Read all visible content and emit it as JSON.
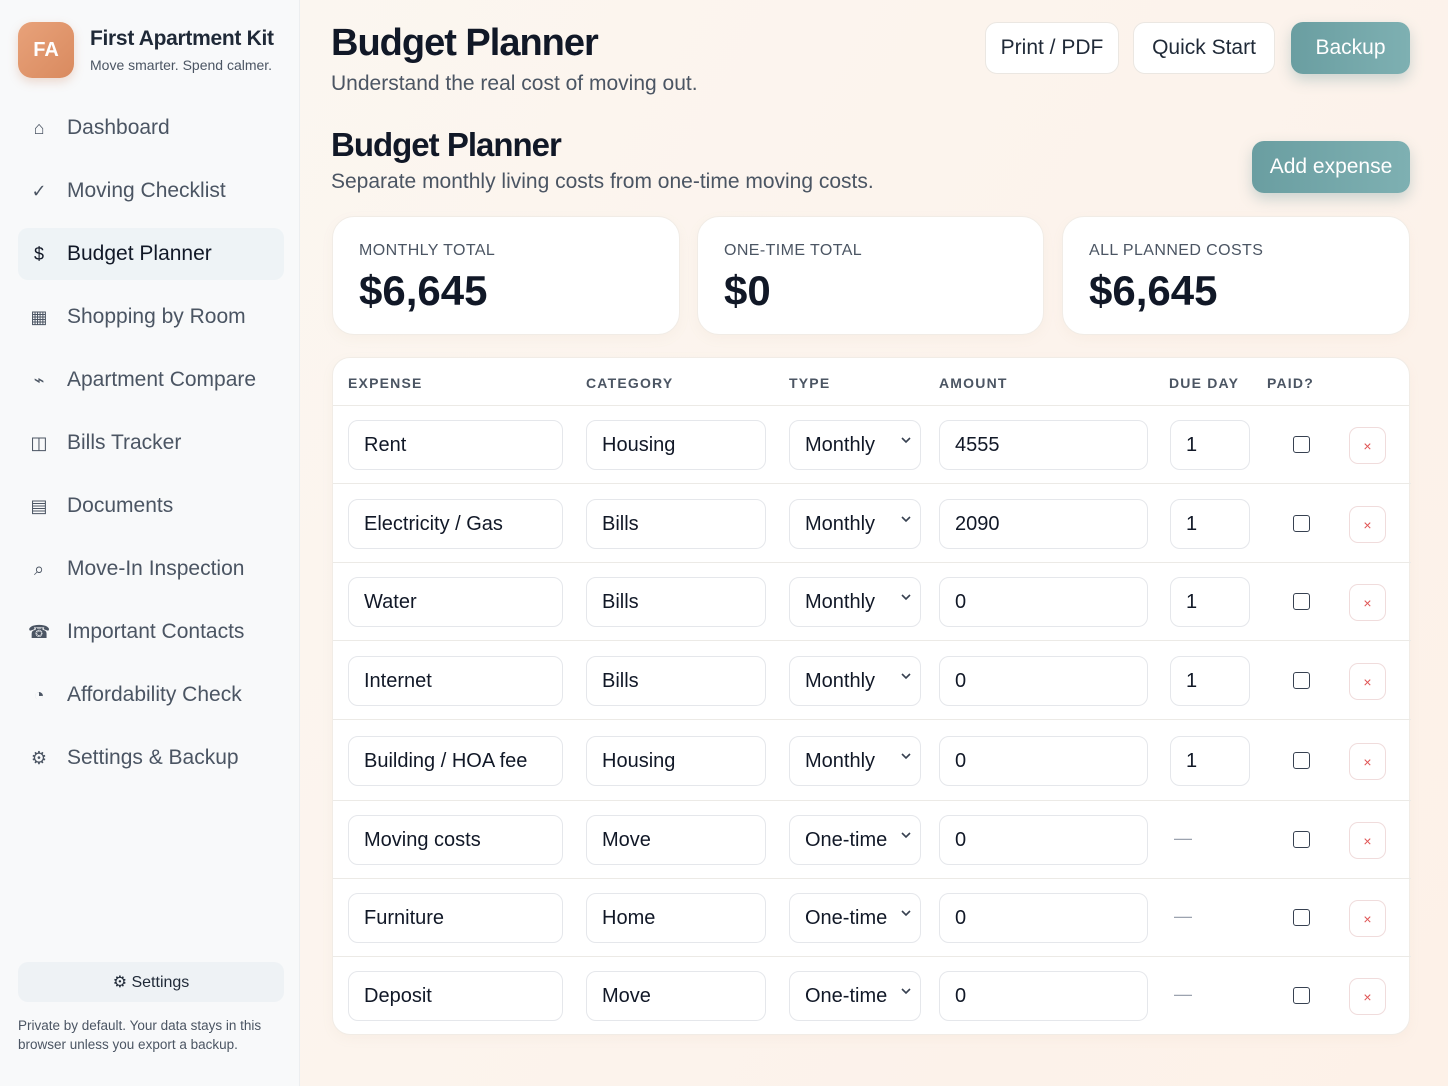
{
  "brand": {
    "initials": "FA",
    "name": "First Apartment Kit",
    "tagline": "Move smarter. Spend calmer."
  },
  "nav": [
    {
      "icon": "⌂",
      "label": "Dashboard",
      "name": "home-icon"
    },
    {
      "icon": "✓",
      "label": "Moving Checklist",
      "name": "check-icon"
    },
    {
      "icon": "$",
      "label": "Budget Planner",
      "name": "dollar-icon",
      "active": true
    },
    {
      "icon": "▦",
      "label": "Shopping by Room",
      "name": "grid-icon"
    },
    {
      "icon": "⌁",
      "label": "Apartment Compare",
      "name": "compare-icon"
    },
    {
      "icon": "◫",
      "label": "Bills Tracker",
      "name": "bills-icon"
    },
    {
      "icon": "▤",
      "label": "Documents",
      "name": "document-icon"
    },
    {
      "icon": "⌕",
      "label": "Move-In Inspection",
      "name": "magnifier-icon"
    },
    {
      "icon": "☎",
      "label": "Important Contacts",
      "name": "phone-icon"
    },
    {
      "icon": "◔",
      "label": "Affordability Check",
      "name": "pie-icon"
    },
    {
      "icon": "⚙",
      "label": "Settings & Backup",
      "name": "gear-icon"
    }
  ],
  "sidebar_footer": {
    "settings_label": "⚙ Settings",
    "privacy_note": "Private by default. Your data stays in this browser unless you export a backup."
  },
  "header": {
    "title": "Budget Planner",
    "subtitle": "Understand the real cost of moving out.",
    "print_label": "Print / PDF",
    "quickstart_label": "Quick Start",
    "backup_label": "Backup"
  },
  "section": {
    "title": "Budget Planner",
    "subtitle": "Separate monthly living costs from one-time moving costs.",
    "add_label": "Add expense"
  },
  "summary": [
    {
      "label": "MONTHLY TOTAL",
      "value": "$6,645"
    },
    {
      "label": "ONE-TIME TOTAL",
      "value": "$0"
    },
    {
      "label": "ALL PLANNED COSTS",
      "value": "$6,645"
    }
  ],
  "table": {
    "headers": {
      "expense": "EXPENSE",
      "category": "CATEGORY",
      "type": "TYPE",
      "amount": "AMOUNT",
      "due": "DUE DAY",
      "paid": "PAID?"
    },
    "rows": [
      {
        "expense": "Rent",
        "category": "Housing",
        "type": "Monthly",
        "amount": "4555",
        "due": "1",
        "paid": false
      },
      {
        "expense": "Electricity / Gas",
        "category": "Bills",
        "type": "Monthly",
        "amount": "2090",
        "due": "1",
        "paid": false
      },
      {
        "expense": "Water",
        "category": "Bills",
        "type": "Monthly",
        "amount": "0",
        "due": "1",
        "paid": false
      },
      {
        "expense": "Internet",
        "category": "Bills",
        "type": "Monthly",
        "amount": "0",
        "due": "1",
        "paid": false
      },
      {
        "expense": "Building / HOA fee",
        "category": "Housing",
        "type": "Monthly",
        "amount": "0",
        "due": "1",
        "paid": false
      },
      {
        "expense": "Moving costs",
        "category": "Move",
        "type": "One-time",
        "amount": "0",
        "due": "—",
        "paid": false
      },
      {
        "expense": "Furniture",
        "category": "Home",
        "type": "One-time",
        "amount": "0",
        "due": "—",
        "paid": false
      },
      {
        "expense": "Deposit",
        "category": "Move",
        "type": "One-time",
        "amount": "0",
        "due": "—",
        "paid": false
      }
    ],
    "delete_glyph": "×"
  }
}
